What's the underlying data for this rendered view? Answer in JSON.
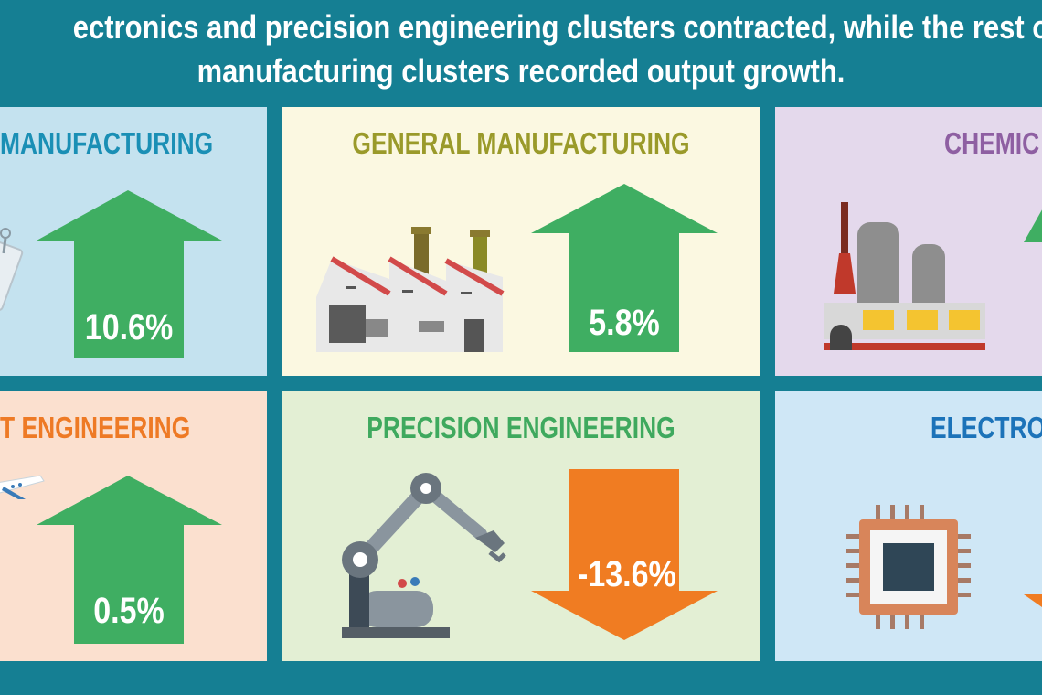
{
  "headline": {
    "line1": "ectronics and precision engineering clusters contracted, while the rest o",
    "line2": "manufacturing clusters recorded output growth."
  },
  "colors": {
    "background": "#157f93",
    "growth_arrow": "#3fae62",
    "decline_arrow": "#f07c22"
  },
  "panels": [
    {
      "title": "MANUFACTURING",
      "value": "10.6%",
      "direction": "up",
      "title_color": "#1a8fb5",
      "bg": "#c4e2ef",
      "icon": "syringe-icon"
    },
    {
      "title": "GENERAL MANUFACTURING",
      "value": "5.8%",
      "direction": "up",
      "title_color": "#9a9a2a",
      "bg": "#fbf8e1",
      "icon": "factory-icon"
    },
    {
      "title": "CHEMIC",
      "value": "",
      "direction": "up",
      "title_color": "#8e5fa2",
      "bg": "#e4d9ec",
      "icon": "chemical-plant-icon"
    },
    {
      "title": "T ENGINEERING",
      "value": "0.5%",
      "direction": "up",
      "title_color": "#ee7a25",
      "bg": "#fbe0cf",
      "icon": "airplane-icon"
    },
    {
      "title": "PRECISION ENGINEERING",
      "value": "-13.6%",
      "direction": "down",
      "title_color": "#3fa95e",
      "bg": "#e3efd4",
      "icon": "robotic-arm-icon"
    },
    {
      "title": "ELECTRO",
      "value": "",
      "direction": "down",
      "title_color": "#1c73b9",
      "bg": "#cfe7f6",
      "icon": "microchip-icon"
    }
  ]
}
